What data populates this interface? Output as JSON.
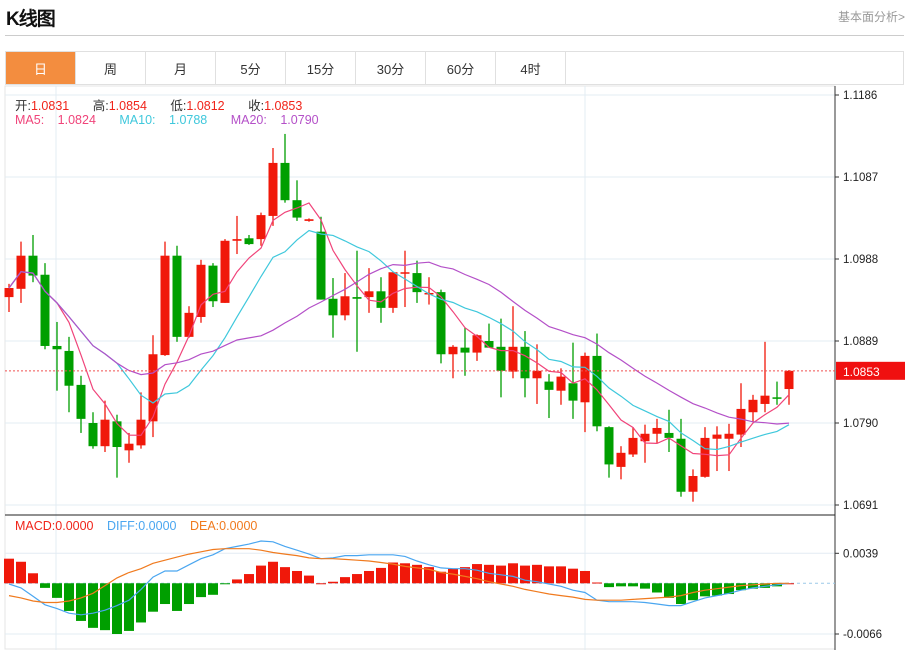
{
  "header": {
    "title": "K线图",
    "link": "基本面分析>"
  },
  "tabs": [
    {
      "label": "日",
      "active": true
    },
    {
      "label": "周",
      "active": false
    },
    {
      "label": "月",
      "active": false
    },
    {
      "label": "5分",
      "active": false
    },
    {
      "label": "15分",
      "active": false
    },
    {
      "label": "30分",
      "active": false
    },
    {
      "label": "60分",
      "active": false
    },
    {
      "label": "4时",
      "active": false
    }
  ],
  "ohlc_legend": {
    "open_label": "开:",
    "open": "1.0831",
    "high_label": "高:",
    "high": "1.0854",
    "low_label": "低:",
    "low": "1.0812",
    "close_label": "收:",
    "close": "1.0853"
  },
  "ma_legend": {
    "ma5_label": "MA5:",
    "ma5": "1.0824",
    "ma10_label": "MA10:",
    "ma10": "1.0788",
    "ma20_label": "MA20:",
    "ma20": "1.0790"
  },
  "macd_legend": {
    "macd": "MACD:0.0000",
    "diff": "DIFF:0.0000",
    "dea": "DEA:0.0000"
  },
  "colors": {
    "up": "#f0180a",
    "down": "#009f00",
    "ma5": "#f0447a",
    "ma10": "#3fc8dc",
    "ma20": "#b450c8",
    "diff": "#4aa6f0",
    "dea": "#f07a1e",
    "active_tab": "#f38d3f"
  },
  "chart_data": [
    {
      "type": "candlestick",
      "title": "K线图",
      "current_price": "1.0853",
      "y_ticks": [
        "1.1186",
        "1.1087",
        "1.0988",
        "1.0889",
        "1.0790",
        "1.0691"
      ],
      "ylim": [
        1.0691,
        1.1186
      ],
      "ohlc": [
        [
          1.0942,
          1.0958,
          1.0924,
          1.0953
        ],
        [
          1.0952,
          1.1009,
          1.0935,
          1.0992
        ],
        [
          1.0992,
          1.1017,
          1.096,
          1.0968
        ],
        [
          1.0969,
          1.0983,
          1.0879,
          1.0883
        ],
        [
          1.0883,
          1.0912,
          1.0829,
          1.0879
        ],
        [
          1.0877,
          1.0894,
          1.0803,
          1.0835
        ],
        [
          1.0836,
          1.0847,
          1.0778,
          1.0795
        ],
        [
          1.079,
          1.0803,
          1.0759,
          1.0762
        ],
        [
          1.0762,
          1.0817,
          1.0755,
          1.0794
        ],
        [
          1.0792,
          1.08,
          1.0724,
          1.0761
        ],
        [
          1.0757,
          1.0778,
          1.0742,
          1.0765
        ],
        [
          1.0763,
          1.0827,
          1.0759,
          1.0794
        ],
        [
          1.0792,
          1.0896,
          1.0773,
          1.0873
        ],
        [
          1.0872,
          1.1009,
          1.0871,
          1.0992
        ],
        [
          1.0992,
          1.1004,
          1.0888,
          1.0894
        ],
        [
          1.0894,
          1.0931,
          1.0893,
          1.0923
        ],
        [
          1.0918,
          1.0987,
          1.0911,
          1.0981
        ],
        [
          1.098,
          1.0983,
          1.093,
          1.0937
        ],
        [
          1.0935,
          1.1012,
          1.0935,
          1.101
        ],
        [
          1.101,
          1.104,
          1.0994,
          1.1012
        ],
        [
          1.1013,
          1.1017,
          1.1005,
          1.1006
        ],
        [
          1.1012,
          1.1044,
          1.1004,
          1.1041
        ],
        [
          1.104,
          1.1122,
          1.1028,
          1.1104
        ],
        [
          1.1104,
          1.1139,
          1.1056,
          1.1059
        ],
        [
          1.1059,
          1.1083,
          1.1034,
          1.1038
        ],
        [
          1.1034,
          1.1037,
          1.1033,
          1.1036
        ],
        [
          1.1021,
          1.1039,
          1.0939,
          1.0939
        ],
        [
          1.094,
          1.0965,
          1.0893,
          1.092
        ],
        [
          1.092,
          1.0971,
          1.0914,
          1.0943
        ],
        [
          1.0942,
          1.0998,
          1.0876,
          1.094
        ],
        [
          1.0942,
          1.0977,
          1.0923,
          1.0949
        ],
        [
          1.0949,
          1.0966,
          1.0911,
          1.0929
        ],
        [
          1.0929,
          1.0972,
          1.0923,
          1.0972
        ],
        [
          1.0971,
          1.0998,
          1.093,
          1.0972
        ],
        [
          1.0971,
          1.0986,
          1.0935,
          1.0948
        ],
        [
          1.0946,
          1.0966,
          1.0933,
          1.0947
        ],
        [
          1.0948,
          1.0951,
          1.0862,
          1.0873
        ],
        [
          1.0873,
          1.0884,
          1.0844,
          1.0882
        ],
        [
          1.0881,
          1.0905,
          1.0847,
          1.0875
        ],
        [
          1.0875,
          1.0897,
          1.0865,
          1.0896
        ],
        [
          1.0889,
          1.091,
          1.0881,
          1.0881
        ],
        [
          1.0882,
          1.0916,
          1.0821,
          1.0853
        ],
        [
          1.0852,
          1.0931,
          1.0844,
          1.0882
        ],
        [
          1.0882,
          1.0901,
          1.0821,
          1.0844
        ],
        [
          1.0844,
          1.0885,
          1.0813,
          1.0853
        ],
        [
          1.084,
          1.0849,
          1.0796,
          1.083
        ],
        [
          1.0829,
          1.0856,
          1.0812,
          1.0846
        ],
        [
          1.0838,
          1.0887,
          1.0795,
          1.0817
        ],
        [
          1.0815,
          1.0875,
          1.0779,
          1.0871
        ],
        [
          1.0871,
          1.0898,
          1.078,
          1.0786
        ],
        [
          1.0785,
          1.0786,
          1.0724,
          1.074
        ],
        [
          1.0737,
          1.0762,
          1.0722,
          1.0754
        ],
        [
          1.0752,
          1.0785,
          1.0749,
          1.0772
        ],
        [
          1.0768,
          1.0788,
          1.0742,
          1.0777
        ],
        [
          1.0777,
          1.0795,
          1.0766,
          1.0784
        ],
        [
          1.0778,
          1.0806,
          1.0755,
          1.0772
        ],
        [
          1.0771,
          1.0795,
          1.0701,
          1.0707
        ],
        [
          1.0707,
          1.0734,
          1.0695,
          1.0726
        ],
        [
          1.0725,
          1.0785,
          1.0724,
          1.0772
        ],
        [
          1.0771,
          1.0786,
          1.0732,
          1.0776
        ],
        [
          1.0771,
          1.0789,
          1.0732,
          1.0777
        ],
        [
          1.0776,
          1.0838,
          1.0761,
          1.0807
        ],
        [
          1.0803,
          1.0824,
          1.0791,
          1.0818
        ],
        [
          1.0813,
          1.0888,
          1.0803,
          1.0823
        ],
        [
          1.0821,
          1.084,
          1.0812,
          1.082
        ],
        [
          1.0831,
          1.0854,
          1.0812,
          1.0853
        ]
      ],
      "ma_periods": [
        5,
        10,
        20
      ]
    },
    {
      "type": "bar+line",
      "title": "MACD",
      "y_ticks": [
        "0.0039",
        "-0.0066"
      ],
      "ylim": [
        -0.0066,
        0.0039
      ],
      "macd": [
        0.0032,
        0.0028,
        0.0013,
        -0.0006,
        -0.0019,
        -0.0036,
        -0.0049,
        -0.0058,
        -0.0061,
        -0.0066,
        -0.0062,
        -0.0051,
        -0.0037,
        -0.0027,
        -0.0036,
        -0.0027,
        -0.0018,
        -0.0015,
        -0.0001,
        0.0005,
        0.0012,
        0.0023,
        0.0028,
        0.0021,
        0.0016,
        0.001,
        0.0,
        0.0002,
        0.0008,
        0.0012,
        0.0016,
        0.002,
        0.0027,
        0.0026,
        0.0024,
        0.0021,
        0.0015,
        0.0019,
        0.0021,
        0.0025,
        0.0024,
        0.0023,
        0.0026,
        0.0023,
        0.0024,
        0.0022,
        0.0022,
        0.0019,
        0.0016,
        0.0001,
        -0.0005,
        -0.0004,
        -0.0004,
        -0.0007,
        -0.0012,
        -0.0019,
        -0.0027,
        -0.0022,
        -0.0017,
        -0.0016,
        -0.0014,
        -0.0009,
        -0.0007,
        -0.0006,
        -0.0004,
        0.0
      ],
      "diff": [
        -0.0001,
        -0.0006,
        -0.0017,
        -0.0028,
        -0.0033,
        -0.0039,
        -0.0041,
        -0.0039,
        -0.0035,
        -0.0029,
        -0.0022,
        -0.0008,
        0.0008,
        0.0016,
        0.0016,
        0.0024,
        0.0032,
        0.0037,
        0.0045,
        0.0048,
        0.0051,
        0.0055,
        0.0054,
        0.0048,
        0.0043,
        0.0038,
        0.0032,
        0.0033,
        0.0036,
        0.0036,
        0.0037,
        0.0037,
        0.0037,
        0.0035,
        0.0029,
        0.0024,
        0.002,
        0.0019,
        0.0019,
        0.0017,
        0.0013,
        0.0011,
        0.0009,
        0.0004,
        0.0002,
        -0.0001,
        -0.0004,
        -0.0009,
        -0.0012,
        -0.0022,
        -0.0024,
        -0.0024,
        -0.0024,
        -0.0025,
        -0.0027,
        -0.0029,
        -0.0029,
        -0.0024,
        -0.0019,
        -0.0016,
        -0.0013,
        -0.0009,
        -0.0006,
        -0.0004,
        -0.0002,
        0.0
      ],
      "dea": [
        -0.0016,
        -0.0019,
        -0.0023,
        -0.0025,
        -0.0025,
        -0.0023,
        -0.0019,
        -0.0013,
        -0.0003,
        0.0007,
        0.0014,
        0.0019,
        0.0026,
        0.003,
        0.0034,
        0.0038,
        0.0041,
        0.0044,
        0.0045,
        0.0045,
        0.0045,
        0.0043,
        0.004,
        0.0038,
        0.0036,
        0.0033,
        0.0032,
        0.0032,
        0.0031,
        0.003,
        0.0029,
        0.0027,
        0.0025,
        0.0022,
        0.002,
        0.0018,
        0.0014,
        0.0012,
        0.0009,
        0.0006,
        0.0002,
        -0.0001,
        -0.0004,
        -0.0008,
        -0.0011,
        -0.0014,
        -0.0016,
        -0.0018,
        -0.0021,
        -0.0022,
        -0.0022,
        -0.0022,
        -0.0021,
        -0.002,
        -0.0019,
        -0.0018,
        -0.0016,
        -0.0012,
        -0.0009,
        -0.0007,
        -0.0005,
        -0.0003,
        -0.0002,
        -0.0001,
        0.0,
        0.0
      ]
    }
  ]
}
